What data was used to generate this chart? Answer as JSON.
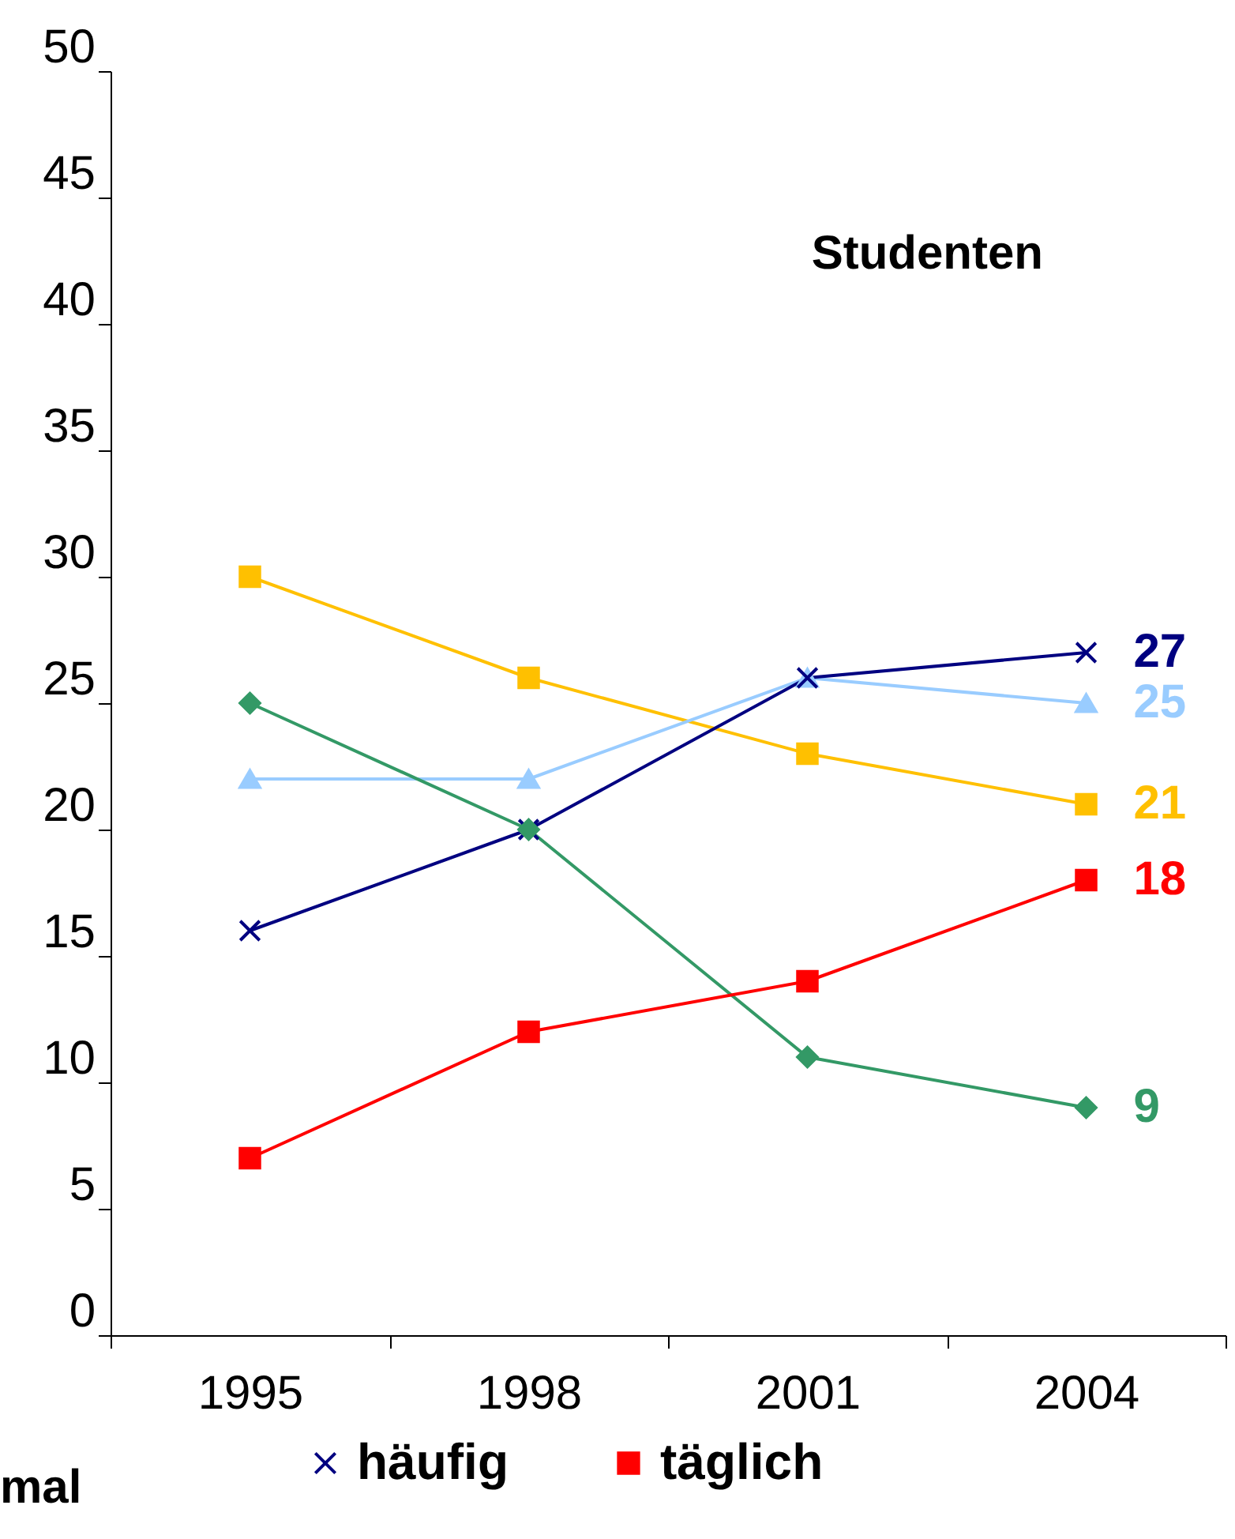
{
  "chart_data": {
    "type": "line",
    "title": "Studenten",
    "categories": [
      "1995",
      "1998",
      "2001",
      "2004"
    ],
    "series": [
      {
        "color": "#ffc000",
        "marker": "square",
        "values": [
          30,
          26,
          23,
          21
        ],
        "value_labels": [
          null,
          null,
          null,
          "21"
        ]
      },
      {
        "color": "#99ccff",
        "marker": "triangle",
        "values": [
          22,
          22,
          26,
          25
        ],
        "value_labels": [
          null,
          null,
          null,
          "25"
        ]
      },
      {
        "name": "häufig",
        "color": "#000080",
        "marker": "cross",
        "values": [
          16,
          20,
          26,
          27
        ],
        "value_labels": [
          null,
          null,
          null,
          "27"
        ]
      },
      {
        "color": "#339966",
        "marker": "diamond",
        "values": [
          25,
          20,
          11,
          9
        ],
        "value_labels": [
          null,
          null,
          null,
          "9"
        ]
      },
      {
        "name": "täglich",
        "color": "#ff0000",
        "marker": "square",
        "values": [
          7,
          12,
          14,
          18
        ],
        "value_labels": [
          null,
          null,
          null,
          "18"
        ]
      }
    ],
    "ylim": [
      0,
      50
    ],
    "yticks": [
      0,
      5,
      10,
      15,
      20,
      25,
      30,
      35,
      40,
      45,
      50
    ],
    "grid": false,
    "legend": "bottom",
    "annotations": [
      "mal"
    ]
  }
}
